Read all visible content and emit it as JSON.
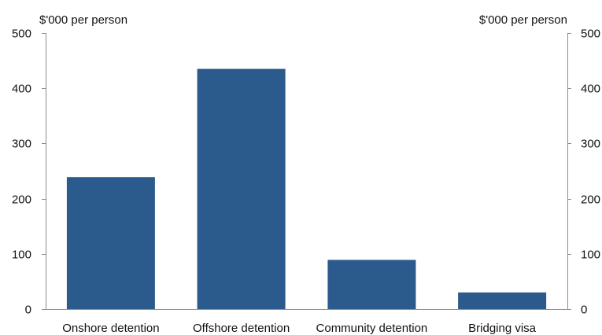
{
  "chart_data": {
    "type": "bar",
    "categories": [
      "Onshore detention",
      "Offshore detention",
      "Community detention",
      "Bridging visa"
    ],
    "values": [
      239,
      435,
      89,
      30
    ],
    "left_axis_label": "$'000 per person",
    "right_axis_label": "$'000 per person",
    "ylim": [
      0,
      500
    ],
    "yticks": [
      0,
      100,
      200,
      300,
      400,
      500
    ],
    "grid": false,
    "legend": "none",
    "colors": {
      "bar": "#2b5a8c",
      "axis": "#8c8c8c",
      "text": "#111111"
    }
  }
}
